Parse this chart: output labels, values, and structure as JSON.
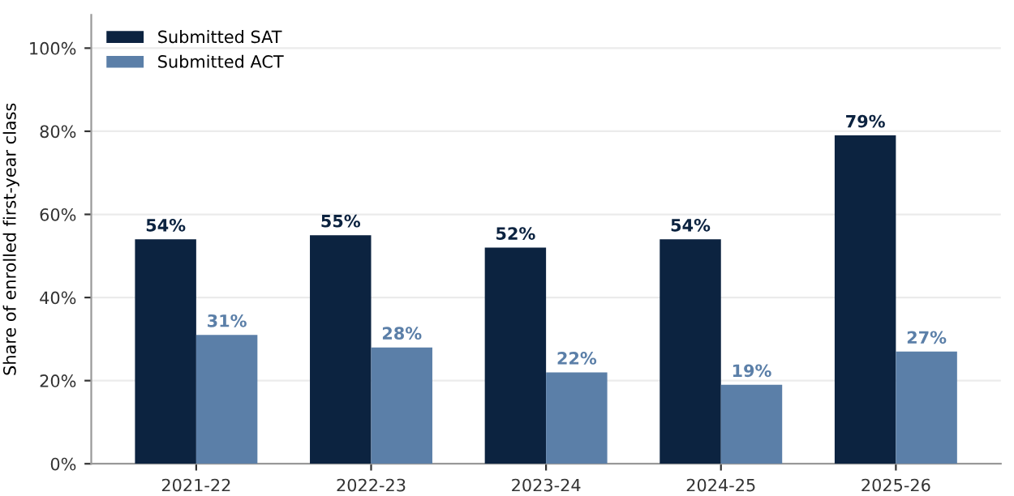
{
  "chart_data": {
    "type": "bar",
    "ylabel": "Share of enrolled first-year class",
    "categories": [
      "2021-22",
      "2022-23",
      "2023-24",
      "2024-25",
      "2025-26"
    ],
    "series": [
      {
        "name": "Submitted SAT",
        "color": "#0c2340",
        "values": [
          54,
          55,
          52,
          54,
          79
        ],
        "value_labels": [
          "54%",
          "55%",
          "52%",
          "54%",
          "79%"
        ]
      },
      {
        "name": "Submitted ACT",
        "color": "#5b7fa8",
        "values": [
          31,
          28,
          22,
          19,
          27
        ],
        "value_labels": [
          "31%",
          "28%",
          "22%",
          "19%",
          "27%"
        ]
      }
    ],
    "ylim": [
      0,
      108
    ],
    "yticks": [
      {
        "value": 0,
        "label": "0%"
      },
      {
        "value": 20,
        "label": "20%"
      },
      {
        "value": 40,
        "label": "40%"
      },
      {
        "value": 60,
        "label": "60%"
      },
      {
        "value": 80,
        "label": "80%"
      },
      {
        "value": 100,
        "label": "100%"
      }
    ],
    "grid": "y",
    "legend": "top left"
  }
}
